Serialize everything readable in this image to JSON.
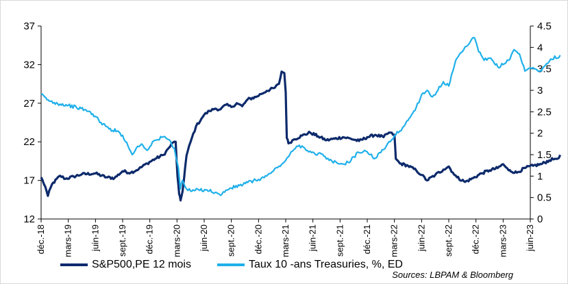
{
  "chart_data": {
    "type": "line",
    "x_tick_labels": [
      "déc.-18",
      "mars-19",
      "juin-19",
      "sept.-19",
      "déc.-19",
      "mars-20",
      "juin-20",
      "sept.-20",
      "déc.-20",
      "mars-21",
      "juin-21",
      "sept.-21",
      "déc.-21",
      "mars-22",
      "juin-22",
      "sept.-22",
      "déc.-22",
      "mars-23",
      "juin-23"
    ],
    "y_left": {
      "ylim": [
        12,
        37
      ],
      "ticks": [
        12,
        17,
        22,
        27,
        32,
        37
      ]
    },
    "y_right": {
      "ylim": [
        0,
        4.5
      ],
      "ticks": [
        "0",
        "0.5",
        "1",
        "1.5",
        "2",
        "2.5",
        "3",
        "3.5",
        "4",
        "4.5"
      ]
    },
    "grid": false,
    "legend_position": "bottom",
    "series": [
      {
        "name": "S&P500,PE 12 mois",
        "axis": "left",
        "color": "#0d2a6b",
        "points": [
          [
            0,
            17.4
          ],
          [
            0.15,
            16.2
          ],
          [
            0.25,
            15.0
          ],
          [
            0.4,
            16.5
          ],
          [
            0.7,
            17.6
          ],
          [
            0.9,
            17.2
          ],
          [
            1.2,
            17.5
          ],
          [
            1.5,
            17.8
          ],
          [
            2.0,
            17.9
          ],
          [
            2.4,
            17.4
          ],
          [
            2.7,
            17.3
          ],
          [
            3.0,
            18.2
          ],
          [
            3.3,
            18.0
          ],
          [
            3.6,
            18.5
          ],
          [
            3.9,
            19.2
          ],
          [
            4.2,
            19.8
          ],
          [
            4.5,
            20.3
          ],
          [
            4.7,
            21.2
          ],
          [
            4.85,
            21.9
          ],
          [
            4.95,
            22.0
          ],
          [
            5.02,
            17.5
          ],
          [
            5.08,
            15.2
          ],
          [
            5.13,
            14.4
          ],
          [
            5.2,
            15.5
          ],
          [
            5.35,
            20.2
          ],
          [
            5.5,
            22.0
          ],
          [
            5.7,
            24.0
          ],
          [
            5.9,
            25.0
          ],
          [
            6.0,
            25.5
          ],
          [
            6.2,
            26.0
          ],
          [
            6.4,
            26.3
          ],
          [
            6.6,
            26.2
          ],
          [
            6.8,
            26.8
          ],
          [
            7.0,
            26.5
          ],
          [
            7.2,
            27.0
          ],
          [
            7.4,
            26.6
          ],
          [
            7.6,
            27.5
          ],
          [
            7.9,
            27.8
          ],
          [
            8.1,
            28.2
          ],
          [
            8.3,
            28.6
          ],
          [
            8.6,
            29.0
          ],
          [
            8.75,
            29.5
          ],
          [
            8.85,
            31.1
          ],
          [
            8.95,
            30.9
          ],
          [
            9.0,
            28.4
          ],
          [
            9.04,
            22.5
          ],
          [
            9.1,
            21.8
          ],
          [
            9.3,
            22.3
          ],
          [
            9.6,
            22.8
          ],
          [
            9.9,
            23.2
          ],
          [
            10.2,
            22.7
          ],
          [
            10.5,
            22.2
          ],
          [
            10.8,
            22.4
          ],
          [
            11.1,
            22.6
          ],
          [
            11.4,
            22.4
          ],
          [
            11.7,
            22.1
          ],
          [
            12.0,
            22.6
          ],
          [
            12.3,
            22.9
          ],
          [
            12.6,
            22.6
          ],
          [
            12.8,
            23.2
          ],
          [
            13.0,
            22.9
          ],
          [
            13.05,
            19.8
          ],
          [
            13.2,
            19.2
          ],
          [
            13.5,
            18.9
          ],
          [
            13.8,
            18.3
          ],
          [
            14.0,
            17.7
          ],
          [
            14.2,
            17.0
          ],
          [
            14.5,
            17.7
          ],
          [
            14.8,
            18.4
          ],
          [
            15.0,
            18.8
          ],
          [
            15.15,
            18.0
          ],
          [
            15.3,
            17.4
          ],
          [
            15.6,
            16.8
          ],
          [
            15.9,
            17.3
          ],
          [
            16.2,
            17.9
          ],
          [
            16.5,
            18.3
          ],
          [
            16.8,
            18.6
          ],
          [
            17.0,
            19.1
          ],
          [
            17.2,
            18.3
          ],
          [
            17.5,
            18.0
          ],
          [
            17.8,
            18.6
          ],
          [
            18.1,
            18.9
          ],
          [
            18.4,
            19.1
          ],
          [
            18.7,
            19.6
          ],
          [
            18.9,
            19.8
          ],
          [
            19.0,
            19.8
          ],
          [
            19.1,
            20.3
          ]
        ]
      },
      {
        "name": "Taux 10 -ans Treasuries, %, ED",
        "axis": "right",
        "color": "#1fb0ea",
        "points": [
          [
            0,
            2.9
          ],
          [
            0.3,
            2.75
          ],
          [
            0.7,
            2.68
          ],
          [
            1.0,
            2.65
          ],
          [
            1.3,
            2.6
          ],
          [
            1.6,
            2.55
          ],
          [
            1.9,
            2.45
          ],
          [
            2.2,
            2.25
          ],
          [
            2.5,
            2.1
          ],
          [
            2.8,
            2.05
          ],
          [
            3.0,
            1.95
          ],
          [
            3.2,
            1.7
          ],
          [
            3.35,
            1.5
          ],
          [
            3.5,
            1.65
          ],
          [
            3.7,
            1.75
          ],
          [
            3.9,
            1.6
          ],
          [
            4.1,
            1.8
          ],
          [
            4.3,
            1.85
          ],
          [
            4.5,
            1.92
          ],
          [
            4.7,
            1.85
          ],
          [
            4.9,
            1.65
          ],
          [
            5.05,
            1.2
          ],
          [
            5.12,
            0.7
          ],
          [
            5.2,
            0.9
          ],
          [
            5.35,
            0.7
          ],
          [
            5.5,
            0.65
          ],
          [
            5.8,
            0.68
          ],
          [
            6.1,
            0.68
          ],
          [
            6.4,
            0.62
          ],
          [
            6.6,
            0.55
          ],
          [
            6.8,
            0.67
          ],
          [
            7.0,
            0.72
          ],
          [
            7.3,
            0.78
          ],
          [
            7.6,
            0.85
          ],
          [
            7.9,
            0.9
          ],
          [
            8.1,
            0.95
          ],
          [
            8.3,
            1.0
          ],
          [
            8.5,
            1.1
          ],
          [
            8.7,
            1.2
          ],
          [
            8.9,
            1.3
          ],
          [
            9.1,
            1.45
          ],
          [
            9.3,
            1.62
          ],
          [
            9.5,
            1.72
          ],
          [
            9.7,
            1.65
          ],
          [
            9.9,
            1.58
          ],
          [
            10.1,
            1.5
          ],
          [
            10.3,
            1.52
          ],
          [
            10.5,
            1.4
          ],
          [
            10.7,
            1.35
          ],
          [
            10.9,
            1.3
          ],
          [
            11.1,
            1.28
          ],
          [
            11.3,
            1.32
          ],
          [
            11.5,
            1.45
          ],
          [
            11.7,
            1.55
          ],
          [
            11.9,
            1.6
          ],
          [
            12.1,
            1.5
          ],
          [
            12.3,
            1.42
          ],
          [
            12.5,
            1.55
          ],
          [
            12.7,
            1.7
          ],
          [
            12.9,
            1.85
          ],
          [
            13.0,
            1.95
          ],
          [
            13.2,
            2.05
          ],
          [
            13.5,
            2.3
          ],
          [
            13.8,
            2.6
          ],
          [
            14.0,
            2.9
          ],
          [
            14.2,
            3.0
          ],
          [
            14.4,
            2.85
          ],
          [
            14.6,
            3.0
          ],
          [
            14.8,
            3.2
          ],
          [
            15.0,
            3.1
          ],
          [
            15.15,
            3.45
          ],
          [
            15.3,
            3.75
          ],
          [
            15.5,
            3.9
          ],
          [
            15.7,
            4.05
          ],
          [
            15.85,
            4.2
          ],
          [
            15.95,
            4.22
          ],
          [
            16.1,
            3.9
          ],
          [
            16.3,
            3.7
          ],
          [
            16.5,
            3.75
          ],
          [
            16.8,
            3.55
          ],
          [
            17.0,
            3.6
          ],
          [
            17.2,
            3.7
          ],
          [
            17.4,
            3.95
          ],
          [
            17.6,
            3.85
          ],
          [
            17.8,
            3.45
          ],
          [
            18.0,
            3.52
          ],
          [
            18.2,
            3.5
          ],
          [
            18.4,
            3.45
          ],
          [
            18.6,
            3.62
          ],
          [
            18.8,
            3.72
          ],
          [
            18.9,
            3.8
          ],
          [
            19.0,
            3.75
          ],
          [
            19.1,
            3.82
          ]
        ]
      }
    ]
  },
  "legend": {
    "items": [
      {
        "label": "S&P500,PE 12 mois",
        "color": "#0d2a6b"
      },
      {
        "label": "Taux 10 -ans Treasuries, %, ED",
        "color": "#1fb0ea"
      }
    ]
  },
  "source": "Sources: LBPAM & Bloomberg"
}
